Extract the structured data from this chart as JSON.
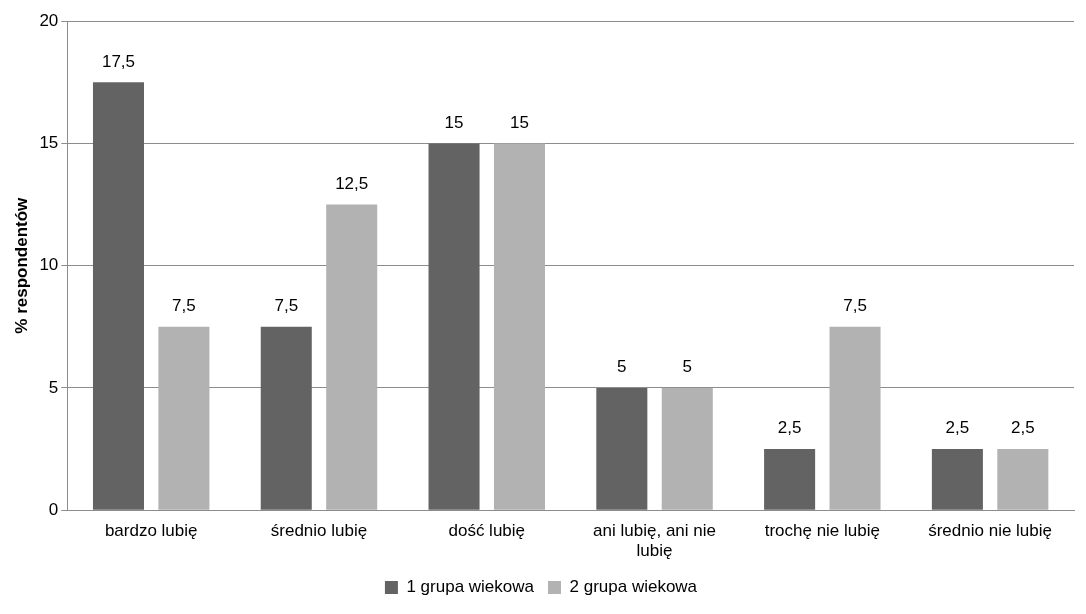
{
  "chart_data": {
    "type": "bar",
    "ylabel": "% respondentów",
    "categories": [
      "bardzo lubię",
      "średnio lubię",
      "dość lubię",
      "ani lubię, ani nie lubię",
      "trochę nie lubię",
      "średnio nie lubię"
    ],
    "series": [
      {
        "name": "1 grupa wiekowa",
        "color": "#636363",
        "values": [
          17.5,
          7.5,
          15,
          5,
          2.5,
          2.5
        ],
        "value_labels": [
          "17,5",
          "7,5",
          "15",
          "5",
          "2,5",
          "2,5"
        ]
      },
      {
        "name": "2 grupa wiekowa",
        "color": "#b2b2b2",
        "values": [
          7.5,
          12.5,
          15,
          5,
          7.5,
          2.5
        ],
        "value_labels": [
          "7,5",
          "12,5",
          "15",
          "5",
          "7,5",
          "2,5"
        ]
      }
    ],
    "ylim": [
      0,
      20
    ],
    "yticks": [
      0,
      5,
      10,
      15,
      20
    ],
    "grid": "y",
    "legend": "bottom"
  }
}
